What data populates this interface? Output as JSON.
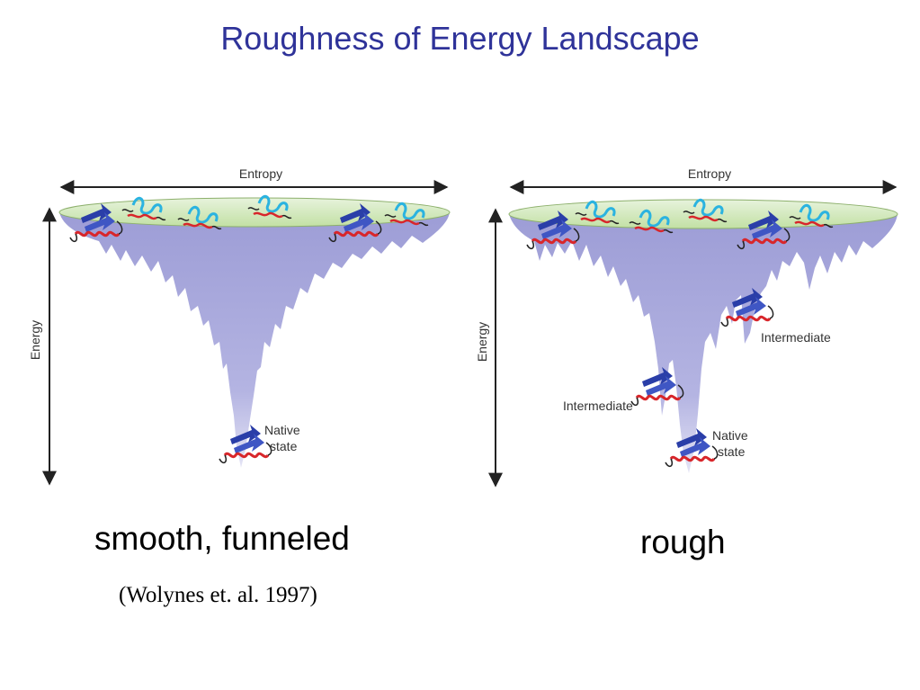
{
  "slide": {
    "title": "Roughness of Energy Landscape"
  },
  "left_panel": {
    "entropy_label": "Entropy",
    "energy_label": "Energy",
    "native_label_line1": "Native",
    "native_label_line2": "state",
    "caption": "smooth, funneled",
    "citation": "(Wolynes et. al. 1997)"
  },
  "right_panel": {
    "entropy_label": "Entropy",
    "energy_label": "Energy",
    "intermediate_right_label": "Intermediate",
    "intermediate_left_label": "Intermediate",
    "native_label_line1": "Native",
    "native_label_line2": "state",
    "caption": "rough"
  },
  "colors": {
    "title": "#2f3399",
    "funnel_fill": "#a9a9dd",
    "funnel_rim": "#cfe8b8",
    "helix": "#d8262b",
    "strand": "#2a3ea8",
    "coil_cyan": "#2bb3e0",
    "coil_dark": "#222222"
  },
  "icons": [
    "double-arrow-icon",
    "unfolded-protein-icon",
    "folded-protein-icon"
  ]
}
